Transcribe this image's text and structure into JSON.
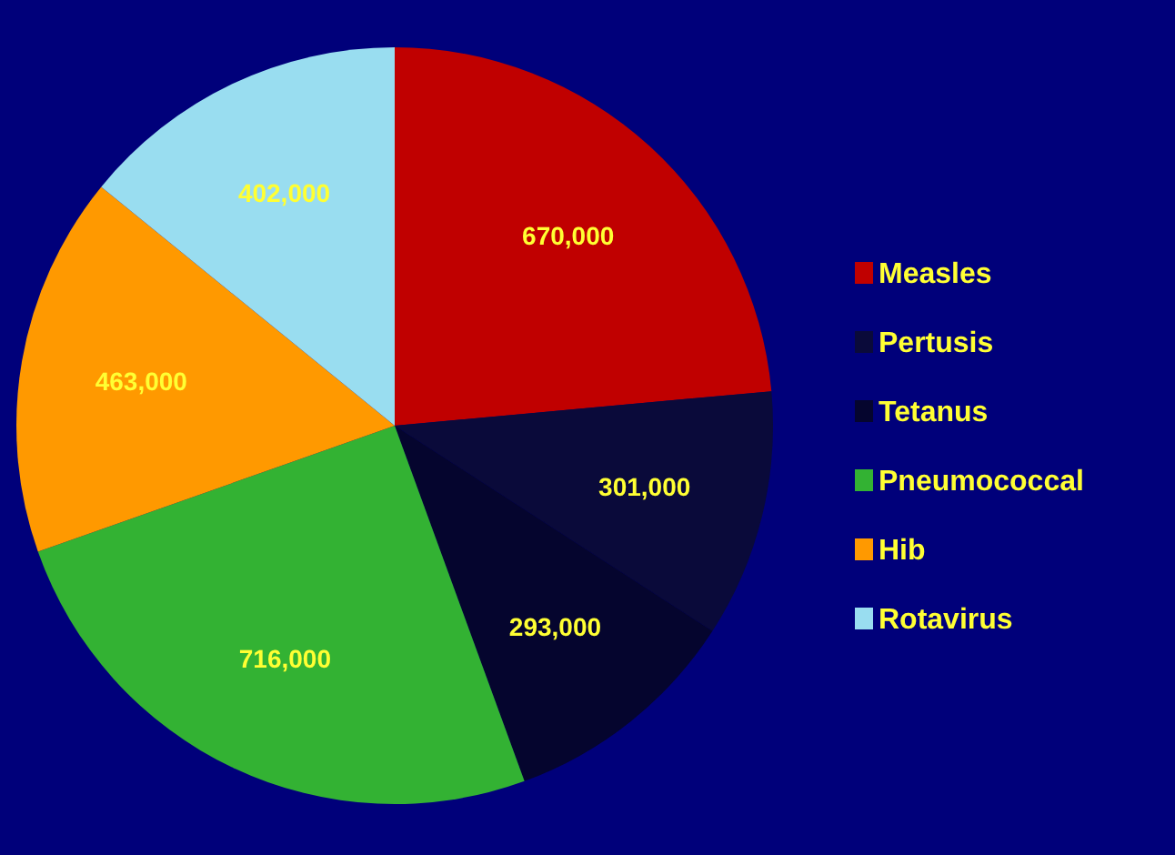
{
  "chart_data": {
    "type": "pie",
    "categories": [
      "Measles",
      "Pertusis",
      "Tetanus",
      "Pneumococcal",
      "Hib",
      "Rotavirus"
    ],
    "values": [
      670000,
      301000,
      293000,
      716000,
      463000,
      402000
    ],
    "colors": [
      "#c00000",
      "#0a0a3a",
      "#05052e",
      "#33b233",
      "#ff9900",
      "#99ddf0"
    ],
    "value_labels": [
      "670,000",
      "301,000",
      "293,000",
      "716,000",
      "463,000",
      "402,000"
    ],
    "legend": "right"
  }
}
